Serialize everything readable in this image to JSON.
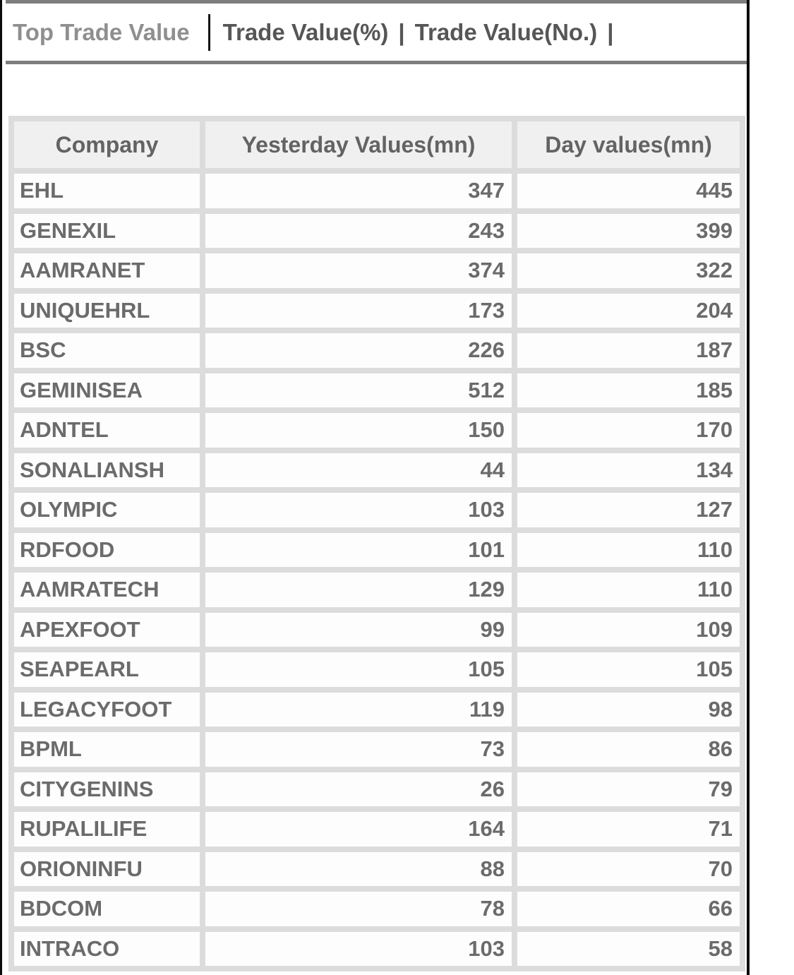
{
  "nav": {
    "title": "Top Trade Value",
    "pipe": "|",
    "tabs": [
      {
        "label": "Trade Value(%)"
      },
      {
        "label": "Trade Value(No.)"
      }
    ]
  },
  "table": {
    "columns": [
      "Company",
      "Yesterday Values(mn)",
      "Day values(mn)"
    ],
    "rows": [
      {
        "company": "EHL",
        "yesterday": "347",
        "day": "445"
      },
      {
        "company": "GENEXIL",
        "yesterday": "243",
        "day": "399"
      },
      {
        "company": "AAMRANET",
        "yesterday": "374",
        "day": "322"
      },
      {
        "company": "UNIQUEHRL",
        "yesterday": "173",
        "day": "204"
      },
      {
        "company": "BSC",
        "yesterday": "226",
        "day": "187"
      },
      {
        "company": "GEMINISEA",
        "yesterday": "512",
        "day": "185"
      },
      {
        "company": "ADNTEL",
        "yesterday": "150",
        "day": "170"
      },
      {
        "company": "SONALIANSH",
        "yesterday": "44",
        "day": "134"
      },
      {
        "company": "OLYMPIC",
        "yesterday": "103",
        "day": "127"
      },
      {
        "company": "RDFOOD",
        "yesterday": "101",
        "day": "110"
      },
      {
        "company": "AAMRATECH",
        "yesterday": "129",
        "day": "110"
      },
      {
        "company": "APEXFOOT",
        "yesterday": "99",
        "day": "109"
      },
      {
        "company": "SEAPEARL",
        "yesterday": "105",
        "day": "105"
      },
      {
        "company": "LEGACYFOOT",
        "yesterday": "119",
        "day": "98"
      },
      {
        "company": "BPML",
        "yesterday": "73",
        "day": "86"
      },
      {
        "company": "CITYGENINS",
        "yesterday": "26",
        "day": "79"
      },
      {
        "company": "RUPALILIFE",
        "yesterday": "164",
        "day": "71"
      },
      {
        "company": "ORIONINFU",
        "yesterday": "88",
        "day": "70"
      },
      {
        "company": "BDCOM",
        "yesterday": "78",
        "day": "66"
      },
      {
        "company": "INTRACO",
        "yesterday": "103",
        "day": "58"
      }
    ]
  },
  "colors": {
    "nav_title": "#8f8f8f",
    "nav_link": "#565656",
    "nav_border": "#7e7e7e",
    "edge_line": "#0b0b0b",
    "table_gap": "#dcdcdc",
    "header_cell_bg": "#f0f0f0",
    "cell_bg": "#fdfdfd",
    "cell_text": "#6b6b6b"
  }
}
